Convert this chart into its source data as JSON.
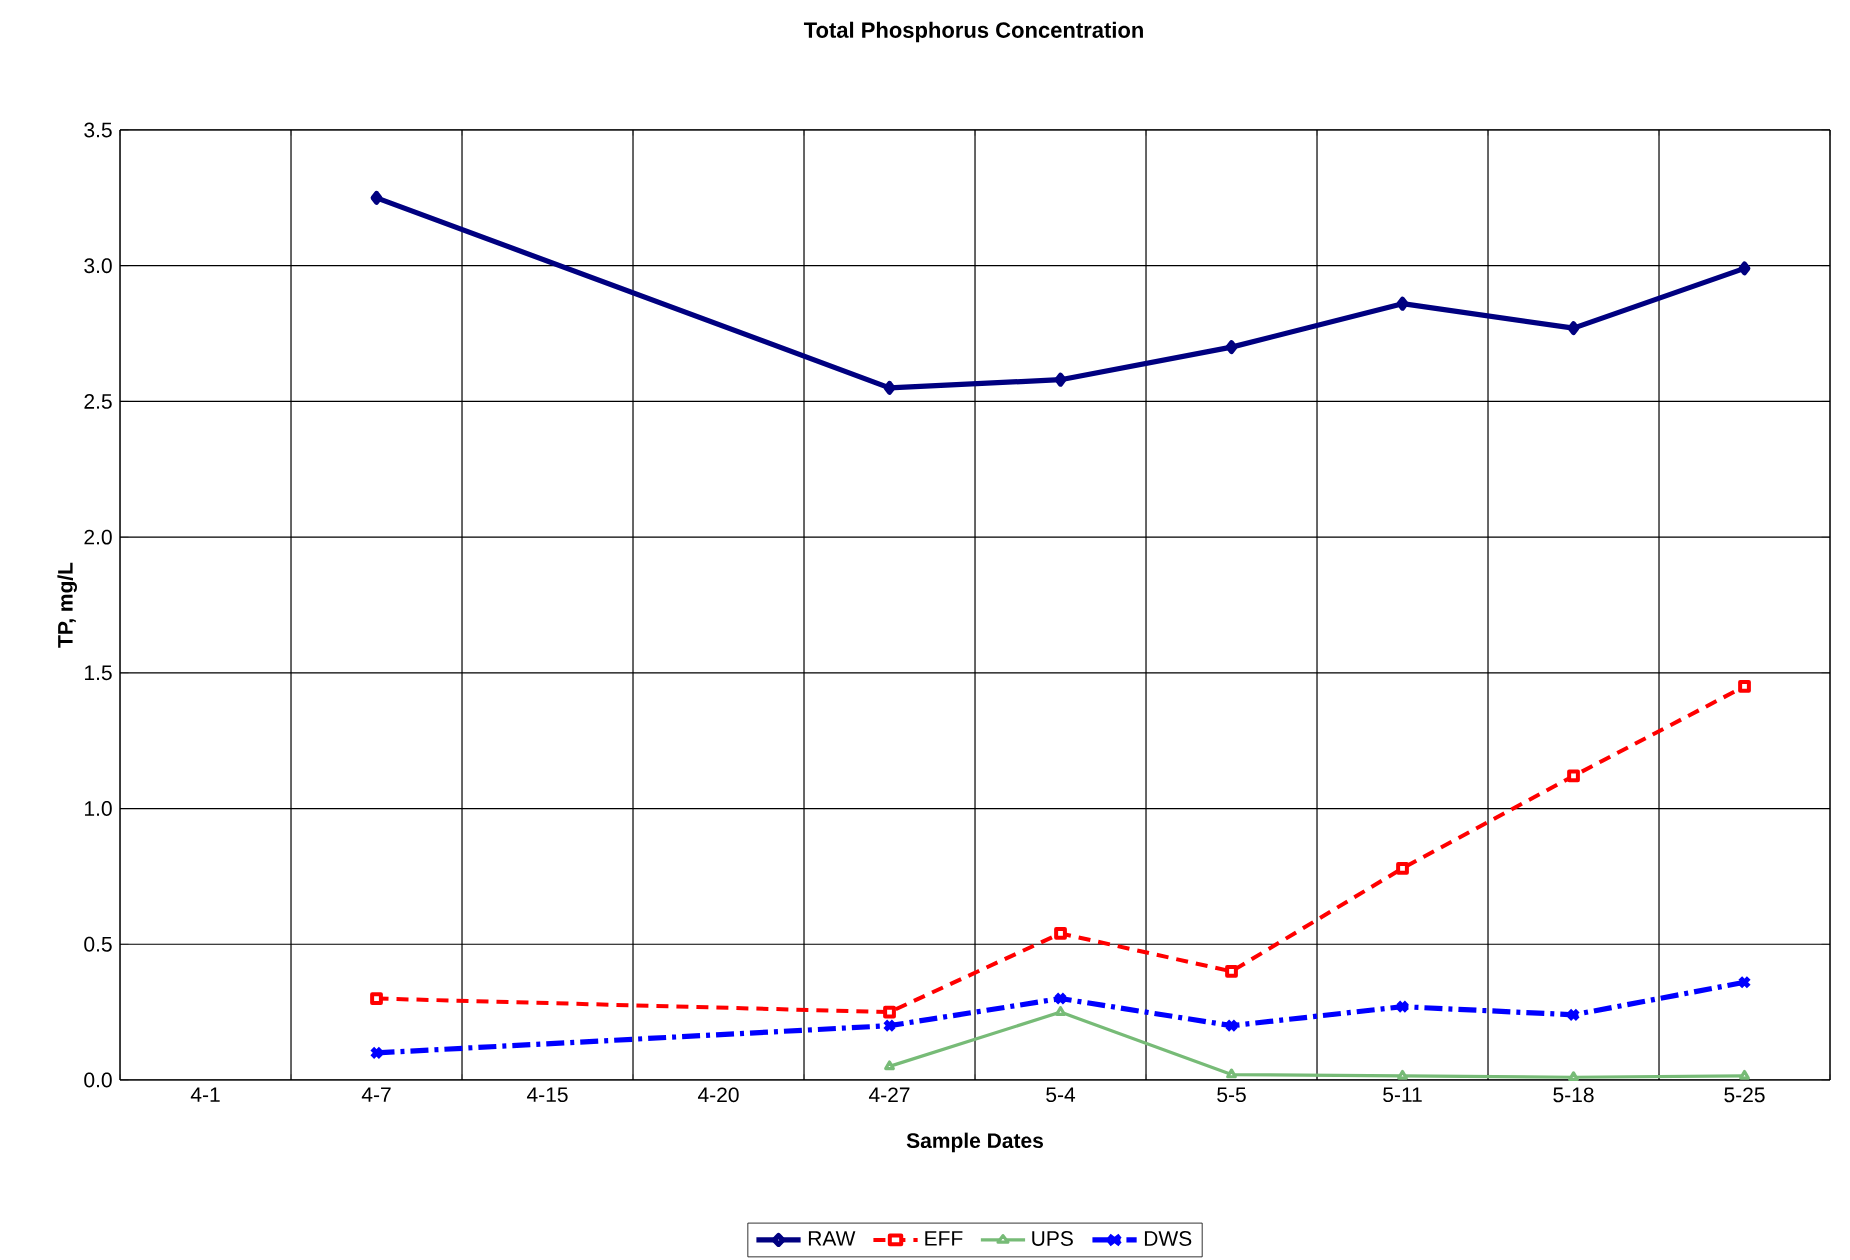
{
  "chart_data": {
    "type": "line",
    "title": "Total Phosphorus Concentration",
    "xlabel": "Sample Dates",
    "ylabel": "TP, mg/L",
    "categories": [
      "4-1",
      "4-7",
      "4-15",
      "4-20",
      "4-27",
      "5-4",
      "5-5",
      "5-11",
      "5-18",
      "5-25"
    ],
    "ylim": [
      0,
      3.5
    ],
    "yticks": [
      {
        "value": 0,
        "label": "0.0"
      },
      {
        "value": 0.5,
        "label": "0.5"
      },
      {
        "value": 1,
        "label": "1.0"
      },
      {
        "value": 1.5,
        "label": "1.5"
      },
      {
        "value": 2,
        "label": "2.0"
      },
      {
        "value": 2.5,
        "label": "2.5"
      },
      {
        "value": 3,
        "label": "3.0"
      },
      {
        "value": 3.5,
        "label": "3.5"
      }
    ],
    "grid": true,
    "legend": "bottom",
    "series": [
      {
        "name": "RAW",
        "color": "#000080",
        "marker": "diamond",
        "line_style": "solid",
        "values": [
          null,
          3.25,
          null,
          null,
          2.55,
          2.58,
          2.7,
          2.86,
          2.77,
          2.99
        ]
      },
      {
        "name": "EFF",
        "color": "#ff0000",
        "marker": "square",
        "line_style": "dashed",
        "values": [
          null,
          0.3,
          null,
          null,
          0.25,
          0.54,
          0.4,
          0.78,
          1.12,
          1.45
        ]
      },
      {
        "name": "UPS",
        "color": "#77bb77",
        "marker": "triangle",
        "line_style": "solid",
        "values": [
          null,
          null,
          null,
          null,
          0.05,
          0.25,
          0.02,
          0.015,
          0.01,
          0.015
        ]
      },
      {
        "name": "DWS",
        "color": "#0000ff",
        "marker": "cross",
        "line_style": "dashdot",
        "values": [
          null,
          0.1,
          null,
          null,
          0.2,
          0.3,
          0.2,
          0.27,
          0.24,
          0.36
        ]
      }
    ]
  }
}
